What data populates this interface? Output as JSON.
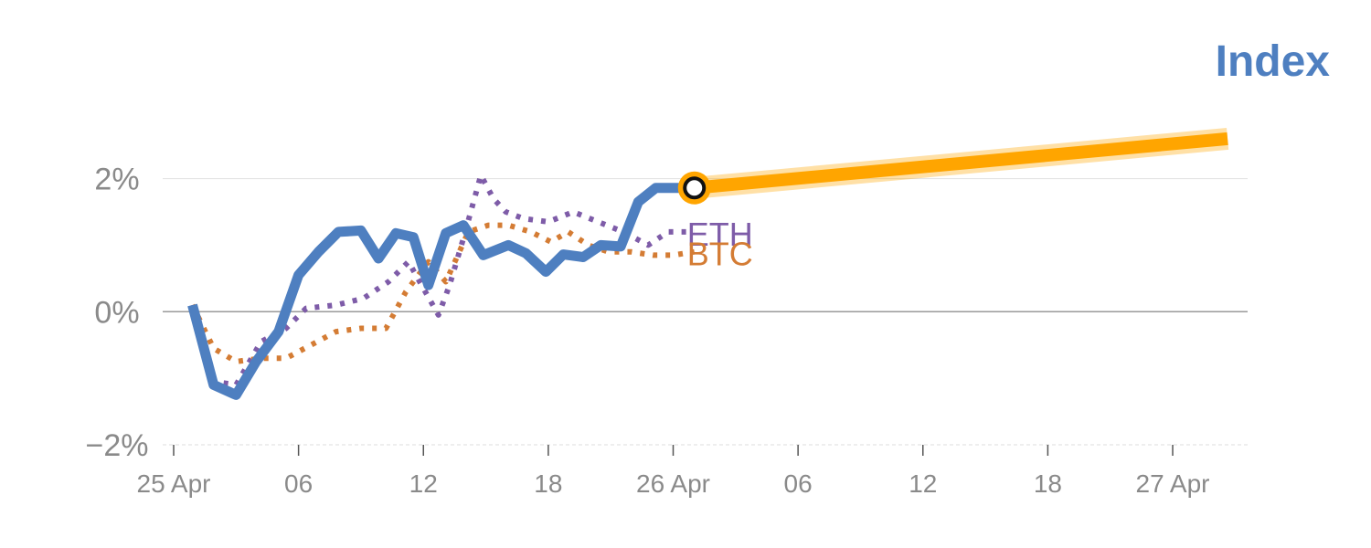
{
  "chart_data": {
    "type": "line",
    "title": "",
    "legend_label": "Index",
    "xlabel": "",
    "ylabel": "",
    "ylim": [
      -2,
      2.9
    ],
    "y_ticks": [
      {
        "value": -2,
        "label": "−2%"
      },
      {
        "value": 0,
        "label": "0%"
      },
      {
        "value": 2,
        "label": "2%"
      }
    ],
    "x_range": [
      0,
      43
    ],
    "x_ticks": [
      {
        "value": 0,
        "label": "25 Apr"
      },
      {
        "value": 5,
        "label": "06"
      },
      {
        "value": 10,
        "label": "12"
      },
      {
        "value": 15,
        "label": "18"
      },
      {
        "value": 20,
        "label": "26 Apr"
      },
      {
        "value": 25,
        "label": "06"
      },
      {
        "value": 30,
        "label": "12"
      },
      {
        "value": 35,
        "label": "18"
      },
      {
        "value": 40,
        "label": "27 Apr"
      }
    ],
    "grid": true,
    "colors": {
      "index": "#4e7fc0",
      "eth": "#7e5ca8",
      "btc": "#d47c34",
      "forecast": "#ffa500",
      "grid": "#e4e4e4",
      "zero_line": "#999999",
      "axis_text": "#8a8a8a"
    },
    "series": [
      {
        "name": "Index",
        "style": "solid",
        "x": [
          0.75,
          1.6,
          2.5,
          3.3,
          4.2,
          5,
          5.8,
          6.6,
          7.5,
          8.2,
          8.9,
          9.6,
          10.2,
          10.9,
          11.6,
          12.4,
          13.4,
          14.1,
          14.9,
          15.6,
          16.4,
          17.1,
          17.9,
          18.6,
          19.3,
          20,
          20.85
        ],
        "y": [
          0.1,
          -1.1,
          -1.25,
          -0.75,
          -0.3,
          0.55,
          0.9,
          1.2,
          1.22,
          0.8,
          1.18,
          1.12,
          0.4,
          1.18,
          1.3,
          0.85,
          1.0,
          0.88,
          0.6,
          0.86,
          0.82,
          1.0,
          0.98,
          1.65,
          1.86,
          1.86,
          1.86
        ]
      },
      {
        "name": "ETH",
        "style": "dotted",
        "x": [
          0.75,
          1.6,
          2.5,
          3.5,
          4.5,
          5.3,
          6.5,
          7.6,
          8.6,
          9.4,
          10,
          10.6,
          11.05,
          11.6,
          12.3,
          12.8,
          13.3,
          14,
          15,
          16,
          17,
          18,
          19,
          19.8,
          20.85
        ],
        "y": [
          0.1,
          -1.05,
          -1.1,
          -0.45,
          -0.25,
          0.05,
          0.1,
          0.2,
          0.45,
          0.75,
          0.35,
          -0.05,
          0.4,
          1.1,
          2.05,
          1.7,
          1.5,
          1.4,
          1.35,
          1.5,
          1.35,
          1.2,
          1.0,
          1.2,
          1.2
        ]
      },
      {
        "name": "BTC",
        "style": "dotted",
        "x": [
          0.75,
          1.6,
          2.5,
          3.5,
          4.5,
          5.5,
          6.5,
          7.5,
          8.5,
          9.3,
          10.2,
          10.9,
          11.8,
          12.6,
          13.4,
          14.3,
          15.1,
          15.8,
          16.6,
          17.4,
          18.3,
          19.2,
          20,
          20.85
        ],
        "y": [
          0.1,
          -0.55,
          -0.75,
          -0.7,
          -0.7,
          -0.5,
          -0.3,
          -0.25,
          -0.25,
          0.3,
          0.75,
          0.45,
          1.2,
          1.3,
          1.3,
          1.2,
          1.05,
          1.2,
          1.0,
          0.9,
          0.9,
          0.85,
          0.85,
          0.9
        ]
      },
      {
        "name": "forecast",
        "style": "thick",
        "x": [
          20.85,
          42.2
        ],
        "y": [
          1.86,
          2.6
        ]
      }
    ],
    "highlight_point": {
      "x": 20.85,
      "y": 1.86
    },
    "series_labels": [
      {
        "text": "ETH",
        "series": "ETH",
        "x": 20.85,
        "y": 1.2
      },
      {
        "text": "BTC",
        "series": "BTC",
        "x": 20.85,
        "y": 0.9
      }
    ]
  }
}
